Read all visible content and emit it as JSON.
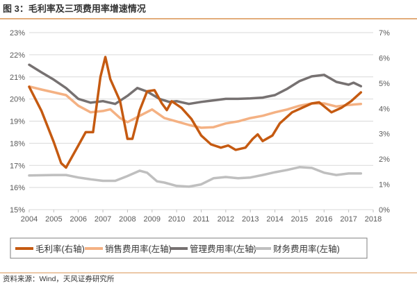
{
  "header": {
    "title": "图 3：毛利率及三项费用率增速情况"
  },
  "footer": {
    "source": "资料来源：Wind，天风证券研究所"
  },
  "colors": {
    "accent_rule": "#D9914F",
    "grid": "#D9D9D9"
  },
  "chart_data": {
    "type": "line",
    "title": "图 3：毛利率及三项费用率增速情况",
    "xlabel": "",
    "ylabel": "",
    "xlim": [
      2004,
      2018
    ],
    "x_ticks": [
      "2004",
      "2005",
      "2006",
      "2007",
      "2008",
      "2009",
      "2010",
      "2011",
      "2012",
      "2013",
      "2014",
      "2015",
      "2016",
      "2017",
      "2018"
    ],
    "ylim_left": [
      15,
      23
    ],
    "y_ticks_left": [
      "15%",
      "16%",
      "17%",
      "18%",
      "19%",
      "20%",
      "21%",
      "22%",
      "23%"
    ],
    "ylim_right": [
      0,
      7
    ],
    "y_ticks_right": [
      "0%",
      "1%",
      "2%",
      "3%",
      "4%",
      "5%",
      "6%",
      "7%"
    ],
    "grid": true,
    "legend_position": "bottom",
    "series": [
      {
        "name": "毛利率(右轴)",
        "color": "#C55A11",
        "axis": "left",
        "x": [
          2004.0,
          2004.5,
          2005.0,
          2005.3,
          2005.5,
          2006.0,
          2006.3,
          2006.6,
          2006.9,
          2007.1,
          2007.3,
          2007.7,
          2008.0,
          2008.2,
          2008.5,
          2008.8,
          2009.1,
          2009.4,
          2009.6,
          2009.8,
          2010.2,
          2010.6,
          2011.0,
          2011.4,
          2011.8,
          2012.1,
          2012.4,
          2012.8,
          2013.1,
          2013.3,
          2013.5,
          2013.9,
          2014.2,
          2014.7,
          2015.1,
          2015.5,
          2015.8,
          2016.3,
          2016.7,
          2017.1,
          2017.5
        ],
        "y": [
          20.55,
          19.46,
          18.05,
          17.1,
          16.9,
          17.9,
          18.5,
          18.5,
          21.0,
          21.9,
          20.9,
          19.9,
          18.2,
          18.2,
          19.5,
          20.35,
          20.4,
          19.8,
          19.5,
          19.9,
          19.6,
          19.1,
          18.35,
          17.95,
          17.8,
          17.9,
          17.7,
          17.8,
          18.2,
          18.4,
          18.1,
          18.35,
          18.9,
          19.4,
          19.6,
          19.8,
          19.85,
          19.4,
          19.6,
          19.9,
          20.3
        ]
      },
      {
        "name": "销售费用率(左轴)",
        "color": "#F4B183",
        "axis": "right",
        "x": [
          2004.0,
          2004.5,
          2005.0,
          2005.5,
          2006.0,
          2006.5,
          2007.0,
          2007.3,
          2007.7,
          2008.0,
          2008.5,
          2009.0,
          2009.5,
          2010.0,
          2010.5,
          2011.0,
          2011.5,
          2012.0,
          2012.5,
          2013.0,
          2013.5,
          2014.0,
          2014.5,
          2015.0,
          2015.5,
          2016.0,
          2016.5,
          2017.0,
          2017.5
        ],
        "y": [
          4.87,
          4.75,
          4.64,
          4.53,
          4.11,
          3.85,
          3.9,
          3.97,
          3.62,
          3.46,
          3.71,
          3.96,
          3.62,
          3.49,
          3.35,
          3.24,
          3.26,
          3.41,
          3.49,
          3.62,
          3.71,
          3.85,
          3.96,
          4.11,
          4.2,
          4.2,
          4.08,
          4.14,
          4.18
        ]
      },
      {
        "name": "管理费用率(左轴)",
        "color": "#767171",
        "axis": "right",
        "x": [
          2004.0,
          2004.5,
          2005.0,
          2005.5,
          2006.0,
          2006.5,
          2007.0,
          2007.5,
          2008.0,
          2008.4,
          2008.8,
          2009.3,
          2009.7,
          2010.0,
          2010.5,
          2011.0,
          2011.5,
          2012.0,
          2012.5,
          2013.0,
          2013.5,
          2014.0,
          2014.5,
          2015.0,
          2015.5,
          2016.0,
          2016.5,
          2017.0,
          2017.2,
          2017.5
        ],
        "y": [
          5.73,
          5.43,
          5.14,
          4.81,
          4.38,
          4.23,
          4.29,
          4.18,
          4.5,
          4.81,
          4.67,
          4.38,
          4.26,
          4.29,
          4.18,
          4.26,
          4.32,
          4.38,
          4.38,
          4.4,
          4.43,
          4.53,
          4.78,
          5.08,
          5.27,
          5.33,
          5.05,
          4.94,
          5.02,
          4.88
        ]
      },
      {
        "name": "财务费用率(左轴)",
        "color": "#BFBFBF",
        "axis": "right",
        "x": [
          2004.0,
          2005.0,
          2005.5,
          2006.0,
          2006.5,
          2007.0,
          2007.5,
          2008.0,
          2008.5,
          2008.8,
          2009.2,
          2009.5,
          2010.0,
          2010.5,
          2011.0,
          2011.5,
          2012.0,
          2012.5,
          2013.0,
          2013.5,
          2014.0,
          2014.5,
          2015.0,
          2015.5,
          2016.0,
          2016.5,
          2017.0,
          2017.5
        ],
        "y": [
          1.35,
          1.37,
          1.37,
          1.27,
          1.2,
          1.14,
          1.14,
          1.33,
          1.54,
          1.46,
          1.12,
          1.07,
          0.94,
          0.91,
          1.0,
          1.24,
          1.29,
          1.24,
          1.27,
          1.37,
          1.48,
          1.57,
          1.68,
          1.65,
          1.46,
          1.37,
          1.43,
          1.43
        ]
      }
    ]
  }
}
